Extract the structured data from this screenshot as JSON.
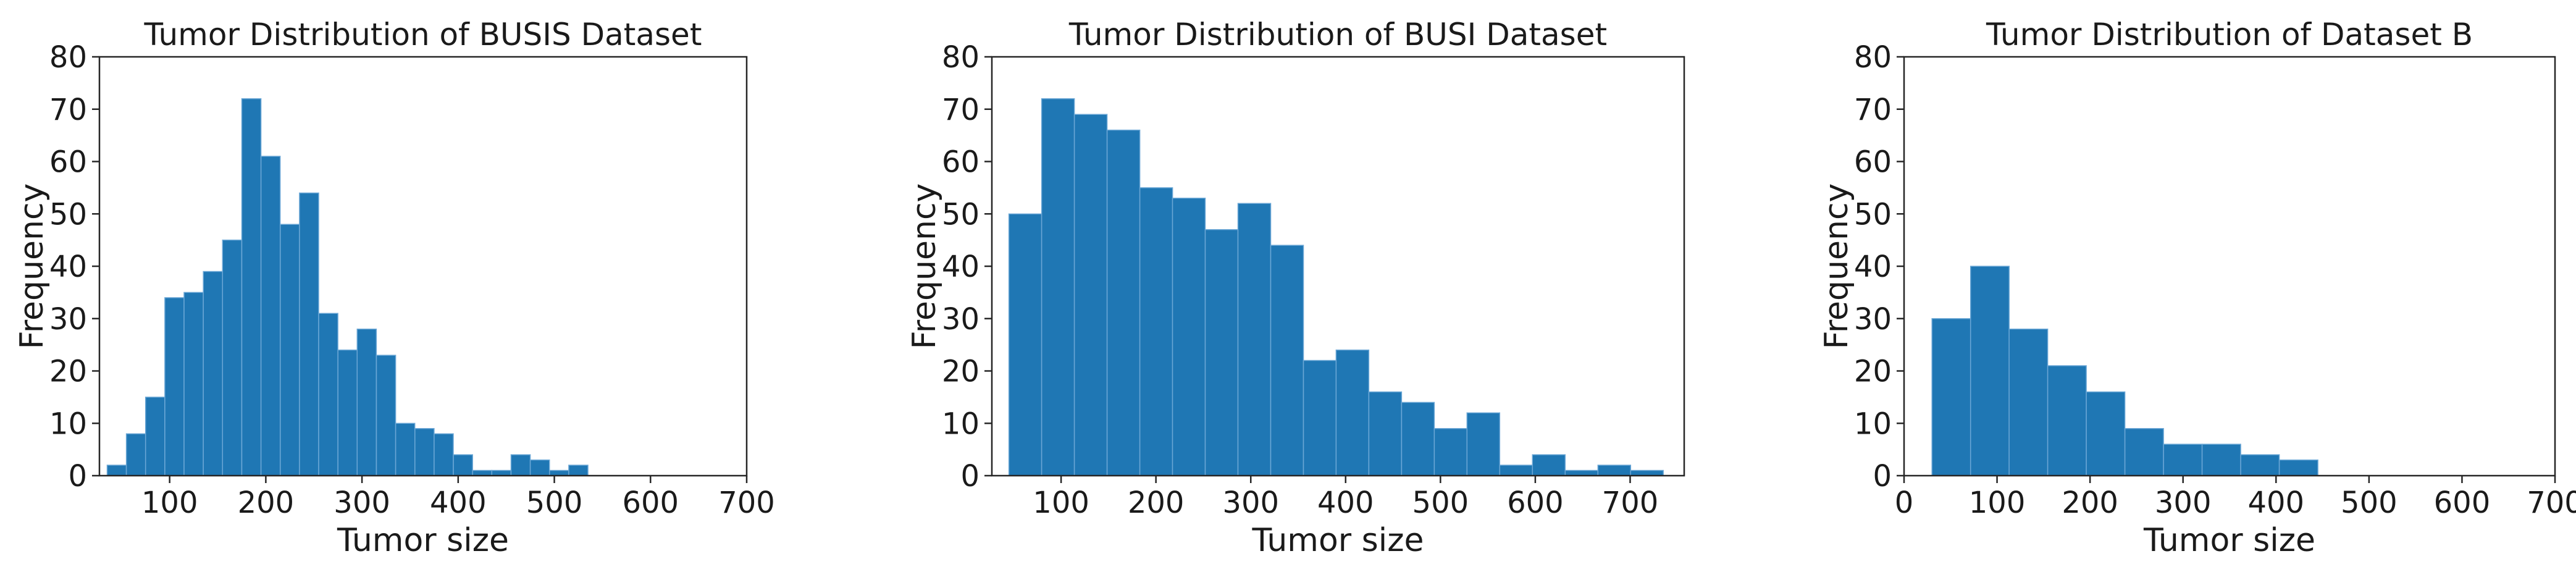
{
  "style": {
    "bar_fill": "#1f77b4",
    "bar_edge": "#6ba7d6",
    "axis_color": "#262626",
    "text_color": "#1a1a1a",
    "background": "#ffffff"
  },
  "chart_data": [
    {
      "id": "busis",
      "type": "bar",
      "title": "Tumor Distribution of BUSIS Dataset",
      "xlabel": "Tumor size",
      "ylabel": "Frequency",
      "xlim": [
        27,
        700
      ],
      "ylim": [
        0,
        80
      ],
      "xticks": [
        100,
        200,
        300,
        400,
        500,
        600,
        700
      ],
      "yticks": [
        0,
        10,
        20,
        30,
        40,
        50,
        60,
        70,
        80
      ],
      "grid": false,
      "legend": false,
      "bin_start": 35,
      "bin_width": 20,
      "counts": [
        2,
        8,
        15,
        34,
        35,
        39,
        45,
        72,
        61,
        48,
        54,
        31,
        24,
        28,
        23,
        10,
        9,
        8,
        4,
        1,
        1,
        4,
        3,
        1,
        2
      ]
    },
    {
      "id": "busi",
      "type": "bar",
      "title": "Tumor Distribution of BUSI Dataset",
      "xlabel": "Tumor size",
      "ylabel": "Frequency",
      "xlim": [
        27,
        757
      ],
      "ylim": [
        0,
        80
      ],
      "xticks": [
        100,
        200,
        300,
        400,
        500,
        600,
        700
      ],
      "yticks": [
        0,
        10,
        20,
        30,
        40,
        50,
        60,
        70,
        80
      ],
      "grid": false,
      "legend": false,
      "bin_start": 45,
      "bin_width": 34.5,
      "counts": [
        50,
        72,
        69,
        66,
        55,
        53,
        47,
        52,
        44,
        22,
        24,
        16,
        14,
        9,
        12,
        2,
        4,
        1,
        2,
        1
      ]
    },
    {
      "id": "dataset-b",
      "type": "bar",
      "title": "Tumor Distribution of Dataset B",
      "xlabel": "Tumor size",
      "ylabel": "Frequency",
      "xlim": [
        0,
        700
      ],
      "ylim": [
        0,
        80
      ],
      "xticks": [
        0,
        100,
        200,
        300,
        400,
        500,
        600,
        700
      ],
      "yticks": [
        0,
        10,
        20,
        30,
        40,
        50,
        60,
        70,
        80
      ],
      "grid": false,
      "legend": false,
      "bin_start": 30,
      "bin_width": 41.5,
      "counts": [
        30,
        40,
        28,
        21,
        16,
        9,
        6,
        6,
        4,
        3
      ]
    }
  ]
}
